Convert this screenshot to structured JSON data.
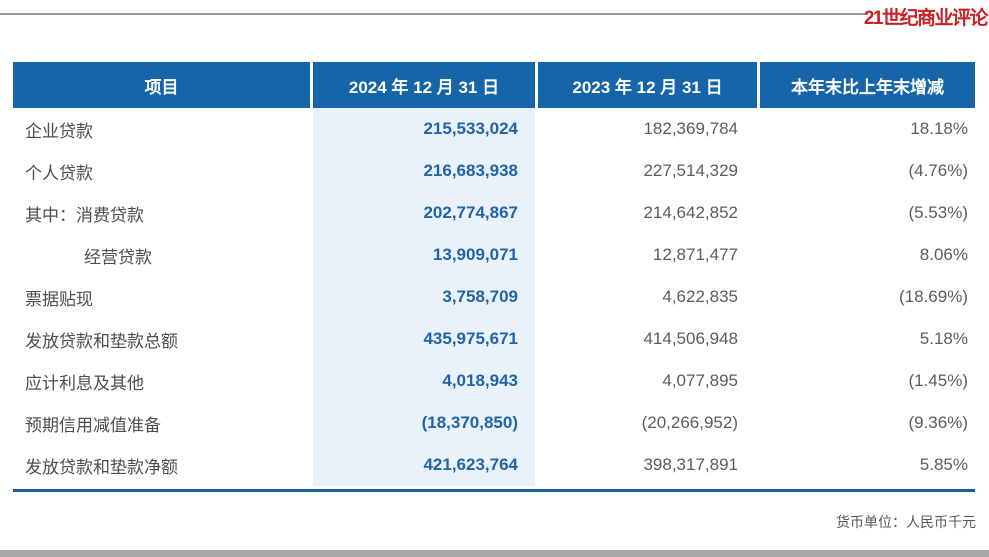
{
  "page": {
    "logo_text": "21世纪商业评论",
    "footnote": "货币单位：人民币千元"
  },
  "colors": {
    "header_bg": "#1565a8",
    "highlight_col_bg": "#e9f2fa",
    "value_2024_text": "#2164a8",
    "body_text": "#5c5c5c",
    "logo_red": "#c82127",
    "bottom_rule_blue": "#1a5a9e",
    "bottom_bar_gray": "#a9a9a9"
  },
  "table": {
    "headers": [
      "项目",
      "2024 年 12 月 31 日",
      "2023 年 12 月 31 日",
      "本年末比上年末增减"
    ],
    "rows": [
      {
        "label": "企业贷款",
        "indent": false,
        "v2024": "215,533,024",
        "v2023": "182,369,784",
        "change": "18.18%"
      },
      {
        "label": "个人贷款",
        "indent": false,
        "v2024": "216,683,938",
        "v2023": "227,514,329",
        "change": "(4.76%)"
      },
      {
        "label": "其中：消费贷款",
        "indent": false,
        "v2024": "202,774,867",
        "v2023": "214,642,852",
        "change": "(5.53%)"
      },
      {
        "label": "经营贷款",
        "indent": true,
        "v2024": "13,909,071",
        "v2023": "12,871,477",
        "change": "8.06%"
      },
      {
        "label": "票据贴现",
        "indent": false,
        "v2024": "3,758,709",
        "v2023": "4,622,835",
        "change": "(18.69%)"
      },
      {
        "label": "发放贷款和垫款总额",
        "indent": false,
        "v2024": "435,975,671",
        "v2023": "414,506,948",
        "change": "5.18%"
      },
      {
        "label": "应计利息及其他",
        "indent": false,
        "v2024": "4,018,943",
        "v2023": "4,077,895",
        "change": "(1.45%)"
      },
      {
        "label": "预期信用减值准备",
        "indent": false,
        "v2024": "(18,370,850)",
        "v2023": "(20,266,952)",
        "change": "(9.36%)"
      },
      {
        "label": "发放贷款和垫款净额",
        "indent": false,
        "v2024": "421,623,764",
        "v2023": "398,317,891",
        "change": "5.85%"
      }
    ]
  }
}
